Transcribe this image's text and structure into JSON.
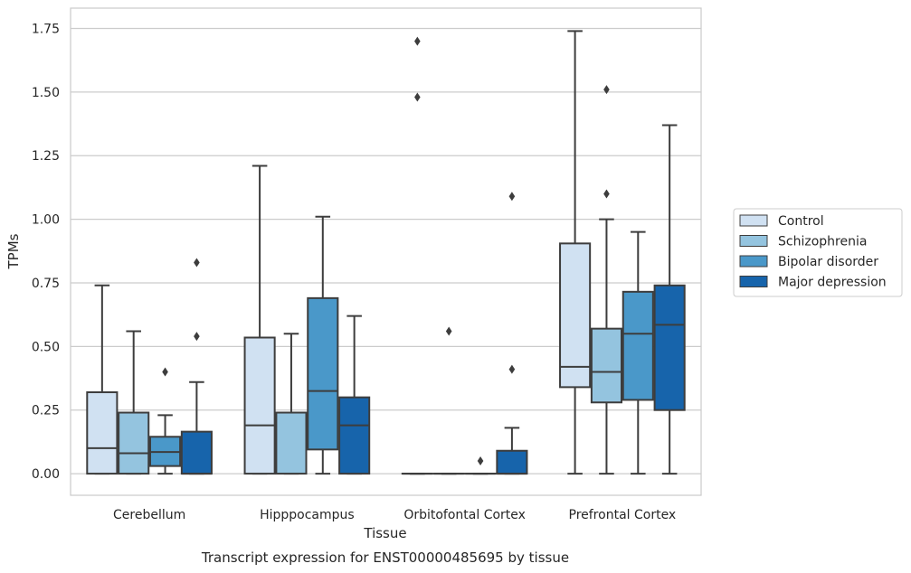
{
  "chart_data": {
    "type": "box",
    "title": "",
    "caption": "Transcript expression for ENST00000485695 by tissue",
    "xlabel": "Tissue",
    "ylabel": "TPMs",
    "ylim": [
      -0.085,
      1.83
    ],
    "yticks": [
      "0.00",
      "0.25",
      "0.50",
      "0.75",
      "1.00",
      "1.25",
      "1.50",
      "1.75"
    ],
    "ytick_values": [
      0,
      0.25,
      0.5,
      0.75,
      1.0,
      1.25,
      1.5,
      1.75
    ],
    "grid": "horizontal",
    "legend_position": "right",
    "categories": [
      "Cerebellum",
      "Hipppocampus",
      "Orbitofontal Cortex",
      "Prefrontal Cortex"
    ],
    "series": [
      {
        "name": "Control",
        "color": "#d0e1f2",
        "boxes": [
          {
            "min": 0.0,
            "q1": 0.0,
            "median": 0.1,
            "q3": 0.32,
            "max": 0.74,
            "outliers": []
          },
          {
            "min": 0.0,
            "q1": 0.0,
            "median": 0.19,
            "q3": 0.535,
            "max": 1.21,
            "outliers": []
          },
          {
            "min": 0.0,
            "q1": 0.0,
            "median": 0.0,
            "q3": 0.0,
            "max": 0.0,
            "outliers": [
              1.7,
              1.48
            ]
          },
          {
            "min": 0.0,
            "q1": 0.34,
            "median": 0.42,
            "q3": 0.905,
            "max": 1.74,
            "outliers": []
          }
        ]
      },
      {
        "name": "Schizophrenia",
        "color": "#94c4df",
        "boxes": [
          {
            "min": 0.0,
            "q1": 0.0,
            "median": 0.08,
            "q3": 0.24,
            "max": 0.56,
            "outliers": []
          },
          {
            "min": 0.0,
            "q1": 0.0,
            "median": 0.24,
            "q3": 0.24,
            "max": 0.55,
            "outliers": []
          },
          {
            "min": 0.0,
            "q1": 0.0,
            "median": 0.0,
            "q3": 0.0,
            "max": 0.0,
            "outliers": [
              0.56
            ]
          },
          {
            "min": 0.0,
            "q1": 0.28,
            "median": 0.4,
            "q3": 0.57,
            "max": 1.0,
            "outliers": [
              1.51,
              1.1
            ]
          }
        ]
      },
      {
        "name": "Bipolar disorder",
        "color": "#4a98c9",
        "boxes": [
          {
            "min": 0.0,
            "q1": 0.03,
            "median": 0.085,
            "q3": 0.145,
            "max": 0.23,
            "outliers": [
              0.4
            ]
          },
          {
            "min": 0.0,
            "q1": 0.095,
            "median": 0.325,
            "q3": 0.69,
            "max": 1.01,
            "outliers": []
          },
          {
            "min": 0.0,
            "q1": 0.0,
            "median": 0.0,
            "q3": 0.0,
            "max": 0.0,
            "outliers": [
              0.05
            ]
          },
          {
            "min": 0.0,
            "q1": 0.29,
            "median": 0.55,
            "q3": 0.715,
            "max": 0.95,
            "outliers": []
          }
        ]
      },
      {
        "name": "Major depression",
        "color": "#1764ab",
        "boxes": [
          {
            "min": 0.0,
            "q1": 0.0,
            "median": 0.0,
            "q3": 0.165,
            "max": 0.36,
            "outliers": [
              0.83,
              0.54
            ]
          },
          {
            "min": 0.0,
            "q1": 0.0,
            "median": 0.19,
            "q3": 0.3,
            "max": 0.62,
            "outliers": []
          },
          {
            "min": 0.0,
            "q1": 0.0,
            "median": 0.0,
            "q3": 0.09,
            "max": 0.18,
            "outliers": [
              1.09,
              0.41
            ]
          },
          {
            "min": 0.0,
            "q1": 0.25,
            "median": 0.585,
            "q3": 0.74,
            "max": 1.37,
            "outliers": []
          }
        ]
      }
    ]
  }
}
